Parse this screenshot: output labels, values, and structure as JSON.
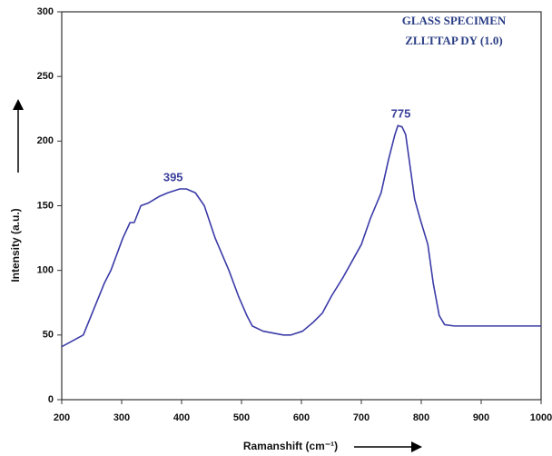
{
  "chart_data": {
    "type": "line",
    "title_lines": [
      "GLASS SPECIMEN",
      "ZLLTTAP DY (1.0)"
    ],
    "x_label": "Ramanshift (cm⁻¹)",
    "y_label": "Intensity (a.u.)",
    "x": [
      200,
      236,
      271,
      282,
      294,
      302,
      314,
      321,
      332,
      344,
      362,
      377,
      397,
      408,
      423,
      438,
      456,
      479,
      495,
      509,
      518,
      536,
      570,
      582,
      602,
      620,
      635,
      650,
      670,
      688,
      700,
      715,
      724,
      733,
      745,
      756,
      761,
      768,
      774,
      780,
      789,
      798,
      811,
      820,
      830,
      839,
      855,
      1000
    ],
    "series": [
      {
        "color": "#3b3ba8",
        "values": [
          41,
          50,
          90,
          100,
          115,
          125,
          137,
          137,
          150,
          152,
          157,
          160,
          163,
          163,
          160,
          150,
          125,
          100,
          80,
          65,
          57,
          53,
          50,
          50,
          53,
          60,
          67,
          80,
          95,
          110,
          120,
          140,
          150,
          160,
          185,
          205,
          212,
          211,
          205,
          185,
          155,
          140,
          120,
          90,
          65,
          58,
          57,
          57
        ]
      }
    ],
    "annotations": [
      {
        "text": "395",
        "x": 395,
        "y": 163
      },
      {
        "text": "775",
        "x": 775,
        "y": 212
      }
    ],
    "xlim": [
      200,
      1000
    ],
    "xticks": [
      200,
      300,
      400,
      500,
      600,
      700,
      800,
      900,
      1000
    ],
    "ylim": [
      0,
      300
    ],
    "yticks": [
      0,
      50,
      100,
      150,
      200,
      250,
      300
    ]
  }
}
